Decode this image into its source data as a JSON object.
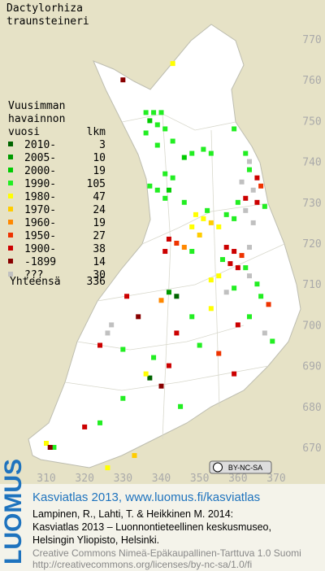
{
  "header": {
    "title_lines": [
      "Dactylorhiza",
      "traunsteineri"
    ]
  },
  "legend": {
    "heading_lines": [
      "Vuusimman",
      "havainnon"
    ],
    "col_label": "vuosi",
    "col_count": "lkm",
    "rows": [
      {
        "label": "2010-",
        "count": 3,
        "color": "#006400"
      },
      {
        "label": "2005-",
        "count": 10,
        "color": "#009a00"
      },
      {
        "label": "2000-",
        "count": 19,
        "color": "#00cc00"
      },
      {
        "label": "1990-",
        "count": 105,
        "color": "#22ee22"
      },
      {
        "label": "1980-",
        "count": 47,
        "color": "#ffff00"
      },
      {
        "label": "1970-",
        "count": 24,
        "color": "#ffcc00"
      },
      {
        "label": "1960-",
        "count": 19,
        "color": "#ff8800"
      },
      {
        "label": "1950-",
        "count": 27,
        "color": "#ee3300"
      },
      {
        "label": "1900-",
        "count": 38,
        "color": "#cc0000"
      },
      {
        "label": "-1899",
        "count": 14,
        "color": "#880000"
      },
      {
        "label": "???",
        "count": 30,
        "color": "#c0c0c0"
      }
    ],
    "total_label": "Yhteensä",
    "total": 336
  },
  "map": {
    "xticks": [
      310,
      320,
      330,
      340,
      350,
      360,
      370
    ],
    "yticks": [
      670,
      680,
      690,
      700,
      710,
      720,
      730,
      740,
      750,
      760,
      770
    ],
    "points": [
      [
        343,
        764,
        4
      ],
      [
        330,
        760,
        9
      ],
      [
        336,
        752,
        3
      ],
      [
        338,
        752,
        3
      ],
      [
        340,
        752,
        3
      ],
      [
        337,
        750,
        2
      ],
      [
        339,
        749,
        3
      ],
      [
        341,
        748,
        3
      ],
      [
        336,
        747,
        3
      ],
      [
        343,
        745,
        3
      ],
      [
        339,
        744,
        3
      ],
      [
        351,
        743,
        3
      ],
      [
        353,
        742,
        3
      ],
      [
        348,
        742,
        3
      ],
      [
        346,
        741,
        2
      ],
      [
        341,
        737,
        3
      ],
      [
        343,
        736,
        3
      ],
      [
        337,
        734,
        3
      ],
      [
        339,
        733,
        3
      ],
      [
        342,
        733,
        2
      ],
      [
        341,
        731,
        3
      ],
      [
        346,
        730,
        3
      ],
      [
        352,
        728,
        3
      ],
      [
        359,
        748,
        3
      ],
      [
        362,
        742,
        3
      ],
      [
        363,
        738,
        3
      ],
      [
        365,
        736,
        8
      ],
      [
        366,
        734,
        7
      ],
      [
        364,
        733,
        10
      ],
      [
        362,
        731,
        8
      ],
      [
        360,
        730,
        3
      ],
      [
        365,
        730,
        8
      ],
      [
        367,
        729,
        3
      ],
      [
        362,
        728,
        10
      ],
      [
        349,
        727,
        4
      ],
      [
        351,
        726,
        4
      ],
      [
        353,
        725,
        5
      ],
      [
        355,
        724,
        4
      ],
      [
        348,
        724,
        4
      ],
      [
        350,
        722,
        5
      ],
      [
        357,
        727,
        3
      ],
      [
        359,
        726,
        3
      ],
      [
        342,
        721,
        8
      ],
      [
        344,
        720,
        7
      ],
      [
        346,
        719,
        6
      ],
      [
        341,
        718,
        8
      ],
      [
        348,
        718,
        3
      ],
      [
        357,
        719,
        8
      ],
      [
        359,
        718,
        8
      ],
      [
        361,
        717,
        7
      ],
      [
        358,
        715,
        8
      ],
      [
        360,
        714,
        8
      ],
      [
        356,
        716,
        3
      ],
      [
        362,
        714,
        3
      ],
      [
        363,
        712,
        10
      ],
      [
        355,
        712,
        4
      ],
      [
        353,
        711,
        4
      ],
      [
        365,
        710,
        3
      ],
      [
        359,
        709,
        3
      ],
      [
        366,
        707,
        3
      ],
      [
        368,
        705,
        7
      ],
      [
        363,
        702,
        3
      ],
      [
        360,
        700,
        8
      ],
      [
        367,
        698,
        10
      ],
      [
        369,
        696,
        3
      ],
      [
        344,
        707,
        0
      ],
      [
        342,
        708,
        1
      ],
      [
        340,
        706,
        6
      ],
      [
        353,
        704,
        4
      ],
      [
        348,
        702,
        3
      ],
      [
        331,
        707,
        8
      ],
      [
        334,
        702,
        9
      ],
      [
        326,
        698,
        10
      ],
      [
        324,
        695,
        8
      ],
      [
        330,
        694,
        3
      ],
      [
        338,
        692,
        3
      ],
      [
        342,
        690,
        8
      ],
      [
        340,
        685,
        9
      ],
      [
        337,
        687,
        0
      ],
      [
        336,
        688,
        4
      ],
      [
        344,
        698,
        8
      ],
      [
        350,
        695,
        3
      ],
      [
        355,
        693,
        7
      ],
      [
        359,
        688,
        8
      ],
      [
        345,
        680,
        3
      ],
      [
        330,
        682,
        3
      ],
      [
        324,
        676,
        3
      ],
      [
        310,
        671,
        4
      ],
      [
        312,
        670,
        3
      ],
      [
        311,
        670,
        9
      ],
      [
        320,
        675,
        8
      ],
      [
        326,
        665,
        4
      ],
      [
        333,
        668,
        5
      ],
      [
        363,
        719,
        10
      ],
      [
        364,
        725,
        10
      ],
      [
        361,
        735,
        10
      ],
      [
        363,
        740,
        10
      ],
      [
        357,
        708,
        10
      ],
      [
        327,
        700,
        10
      ]
    ]
  },
  "footer": {
    "logo": "LUOMUS",
    "cc": "BY-NC-SA",
    "site": "Kasviatlas 2013, www.luomus.fi/kasviatlas",
    "citation_lines": [
      "Lampinen, R., Lahti, T. & Heikkinen M. 2014:",
      "Kasviatlas 2013 – Luonnontieteellinen keskusmuseo,",
      "Helsingin Yliopisto, Helsinki."
    ],
    "license_lines": [
      "Creative Commons Nimeä-Epäkaupallinen-Tarttuva 1.0 Suomi",
      "http://creativecommons.org/licenses/by-nc-sa/1.0/fi"
    ]
  }
}
